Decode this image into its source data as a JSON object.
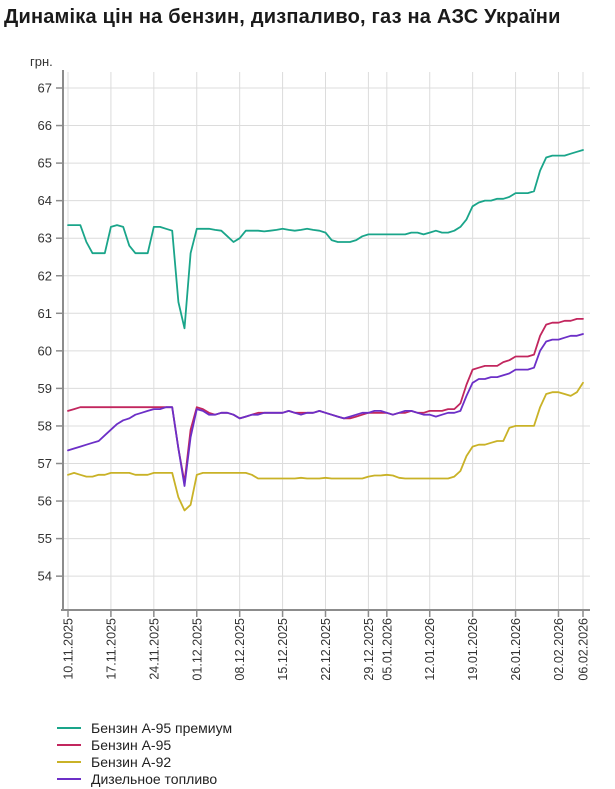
{
  "page": {
    "title": "Динаміка цін на бензин, дизпаливо, газ на АЗС України"
  },
  "chart_data": {
    "type": "line",
    "title": "Динаміка цін на бензин, дизпаливо, газ на АЗС України",
    "ylabel": "грн.",
    "xlabel": "",
    "grid": true,
    "legend_position": "bottom-left",
    "ylim": [
      54,
      67
    ],
    "y_ticks": [
      54,
      55,
      56,
      57,
      58,
      59,
      60,
      61,
      62,
      63,
      64,
      65,
      66,
      67
    ],
    "x_tick_labels": [
      "10.11.2025",
      "17.11.2025",
      "24.11.2025",
      "01.12.2025",
      "08.12.2025",
      "15.12.2025",
      "22.12.2025",
      "29.12.2025",
      "05.01.2026",
      "12.01.2026",
      "19.01.2026",
      "26.01.2026",
      "02.02.2026",
      "06.02.2026"
    ],
    "x_tick_indices": [
      0,
      7,
      14,
      21,
      28,
      35,
      42,
      49,
      52,
      59,
      66,
      73,
      80,
      84
    ],
    "dates": [
      "10.11.2025",
      "11.11.2025",
      "12.11.2025",
      "13.11.2025",
      "14.11.2025",
      "15.11.2025",
      "16.11.2025",
      "17.11.2025",
      "18.11.2025",
      "19.11.2025",
      "20.11.2025",
      "21.11.2025",
      "22.11.2025",
      "23.11.2025",
      "24.11.2025",
      "25.11.2025",
      "26.11.2025",
      "27.11.2025",
      "28.11.2025",
      "29.11.2025",
      "30.11.2025",
      "01.12.2025",
      "02.12.2025",
      "03.12.2025",
      "04.12.2025",
      "05.12.2025",
      "06.12.2025",
      "07.12.2025",
      "08.12.2025",
      "09.12.2025",
      "10.12.2025",
      "11.12.2025",
      "12.12.2025",
      "13.12.2025",
      "14.12.2025",
      "15.12.2025",
      "16.12.2025",
      "17.12.2025",
      "18.12.2025",
      "19.12.2025",
      "20.12.2025",
      "21.12.2025",
      "22.12.2025",
      "23.12.2025",
      "24.12.2025",
      "25.12.2025",
      "26.12.2025",
      "27.12.2025",
      "28.12.2025",
      "29.12.2025",
      "30.12.2025",
      "31.12.2025",
      "05.01.2026",
      "06.01.2026",
      "07.01.2026",
      "08.01.2026",
      "09.01.2026",
      "10.01.2026",
      "11.01.2026",
      "12.01.2026",
      "13.01.2026",
      "14.01.2026",
      "15.01.2026",
      "16.01.2026",
      "17.01.2026",
      "18.01.2026",
      "19.01.2026",
      "20.01.2026",
      "21.01.2026",
      "22.01.2026",
      "23.01.2026",
      "24.01.2026",
      "25.01.2026",
      "26.01.2026",
      "27.01.2026",
      "28.01.2026",
      "29.01.2026",
      "30.01.2026",
      "31.01.2026",
      "01.02.2026",
      "02.02.2026",
      "03.02.2026",
      "04.02.2026",
      "05.02.2026",
      "06.02.2026"
    ],
    "series": [
      {
        "name": "Бензин А-95 премиум",
        "color": "#1aa58a",
        "values": [
          63.35,
          63.35,
          63.35,
          62.9,
          62.6,
          62.6,
          62.6,
          63.3,
          63.35,
          63.3,
          62.8,
          62.6,
          62.6,
          62.6,
          63.3,
          63.3,
          63.25,
          63.2,
          61.3,
          60.6,
          62.6,
          63.25,
          63.25,
          63.25,
          63.22,
          63.2,
          63.05,
          62.9,
          63.0,
          63.2,
          63.2,
          63.2,
          63.18,
          63.2,
          63.22,
          63.25,
          63.22,
          63.2,
          63.22,
          63.25,
          63.22,
          63.2,
          63.15,
          62.95,
          62.9,
          62.9,
          62.9,
          62.95,
          63.05,
          63.1,
          63.1,
          63.1,
          63.1,
          63.1,
          63.1,
          63.1,
          63.15,
          63.15,
          63.1,
          63.15,
          63.2,
          63.15,
          63.15,
          63.2,
          63.3,
          63.5,
          63.85,
          63.95,
          64.0,
          64.0,
          64.05,
          64.05,
          64.1,
          64.2,
          64.2,
          64.2,
          64.25,
          64.8,
          65.15,
          65.2,
          65.2,
          65.2,
          65.25,
          65.3,
          65.35
        ]
      },
      {
        "name": "Бензин А-95",
        "color": "#c2265e",
        "values": [
          58.4,
          58.45,
          58.5,
          58.5,
          58.5,
          58.5,
          58.5,
          58.5,
          58.5,
          58.5,
          58.5,
          58.5,
          58.5,
          58.5,
          58.5,
          58.5,
          58.5,
          58.5,
          57.4,
          56.5,
          57.9,
          58.5,
          58.45,
          58.35,
          58.3,
          58.35,
          58.35,
          58.3,
          58.2,
          58.25,
          58.3,
          58.35,
          58.35,
          58.35,
          58.35,
          58.35,
          58.4,
          58.35,
          58.35,
          58.35,
          58.35,
          58.4,
          58.35,
          58.3,
          58.25,
          58.2,
          58.2,
          58.25,
          58.3,
          58.35,
          58.35,
          58.35,
          58.35,
          58.3,
          58.35,
          58.35,
          58.4,
          58.35,
          58.35,
          58.4,
          58.4,
          58.4,
          58.45,
          58.45,
          58.6,
          59.1,
          59.5,
          59.55,
          59.6,
          59.6,
          59.6,
          59.7,
          59.75,
          59.85,
          59.85,
          59.85,
          59.9,
          60.4,
          60.7,
          60.75,
          60.75,
          60.8,
          60.8,
          60.85,
          60.85
        ]
      },
      {
        "name": "Бензин А-92",
        "color": "#c9b227",
        "values": [
          56.7,
          56.75,
          56.7,
          56.65,
          56.65,
          56.7,
          56.7,
          56.75,
          56.75,
          56.75,
          56.75,
          56.7,
          56.7,
          56.7,
          56.75,
          56.75,
          56.75,
          56.75,
          56.1,
          55.75,
          55.9,
          56.7,
          56.75,
          56.75,
          56.75,
          56.75,
          56.75,
          56.75,
          56.75,
          56.75,
          56.7,
          56.6,
          56.6,
          56.6,
          56.6,
          56.6,
          56.6,
          56.6,
          56.62,
          56.6,
          56.6,
          56.6,
          56.62,
          56.6,
          56.6,
          56.6,
          56.6,
          56.6,
          56.6,
          56.65,
          56.68,
          56.68,
          56.7,
          56.68,
          56.62,
          56.6,
          56.6,
          56.6,
          56.6,
          56.6,
          56.6,
          56.6,
          56.6,
          56.65,
          56.8,
          57.2,
          57.45,
          57.5,
          57.5,
          57.55,
          57.6,
          57.6,
          57.95,
          58.0,
          58.0,
          58.0,
          58.0,
          58.5,
          58.85,
          58.9,
          58.9,
          58.85,
          58.8,
          58.9,
          59.15
        ]
      },
      {
        "name": "Дизельное топливо",
        "color": "#6c2fc7",
        "values": [
          57.35,
          57.4,
          57.45,
          57.5,
          57.55,
          57.6,
          57.75,
          57.9,
          58.05,
          58.15,
          58.2,
          58.3,
          58.35,
          58.4,
          58.45,
          58.45,
          58.5,
          58.5,
          57.4,
          56.4,
          57.7,
          58.45,
          58.4,
          58.3,
          58.3,
          58.35,
          58.35,
          58.3,
          58.2,
          58.25,
          58.3,
          58.3,
          58.35,
          58.35,
          58.35,
          58.35,
          58.4,
          58.35,
          58.3,
          58.35,
          58.35,
          58.4,
          58.35,
          58.3,
          58.25,
          58.2,
          58.25,
          58.3,
          58.35,
          58.35,
          58.4,
          58.4,
          58.35,
          58.3,
          58.35,
          58.4,
          58.4,
          58.35,
          58.3,
          58.3,
          58.25,
          58.3,
          58.35,
          58.35,
          58.4,
          58.8,
          59.15,
          59.25,
          59.25,
          59.3,
          59.3,
          59.35,
          59.4,
          59.5,
          59.5,
          59.5,
          59.55,
          60.0,
          60.25,
          60.3,
          60.3,
          60.35,
          60.4,
          60.4,
          60.45
        ]
      }
    ],
    "axis_color": "#8c8c8c",
    "grid_color": "#dcdcdc",
    "tick_text_color": "#333333"
  }
}
